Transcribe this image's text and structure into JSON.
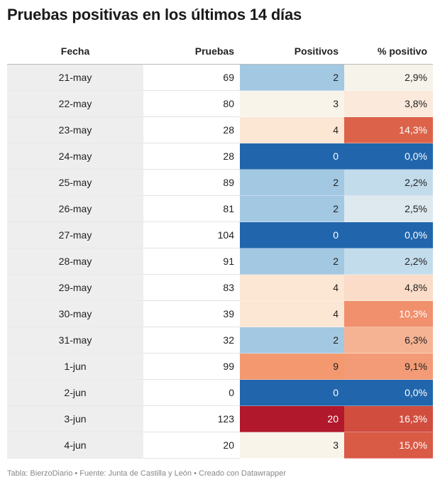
{
  "title": "Pruebas positivas en los últimos 14 días",
  "source": "Tabla: BierzoDiario • Fuente: Junta de Castilla y León • Creado con Datawrapper",
  "chart_data": {
    "type": "table",
    "columns": [
      "Fecha",
      "Pruebas",
      "Positivos",
      "% positivo"
    ],
    "rows": [
      {
        "fecha": "21-may",
        "pruebas": "69",
        "positivos": "2",
        "pct": "2,9%",
        "pos_bg": "#a3c8e2",
        "pos_fg": "#222222",
        "pct_bg": "#f5f3ea",
        "pct_fg": "#222222"
      },
      {
        "fecha": "22-may",
        "pruebas": "80",
        "positivos": "3",
        "pct": "3,8%",
        "pos_bg": "#f8f4ea",
        "pos_fg": "#222222",
        "pct_bg": "#fbe9db",
        "pct_fg": "#222222"
      },
      {
        "fecha": "23-may",
        "pruebas": "28",
        "positivos": "4",
        "pct": "14,3%",
        "pos_bg": "#fce6d4",
        "pos_fg": "#222222",
        "pct_bg": "#dc634a",
        "pct_fg": "#ffffff"
      },
      {
        "fecha": "24-may",
        "pruebas": "28",
        "positivos": "0",
        "pct": "0,0%",
        "pos_bg": "#2166ac",
        "pos_fg": "#ffffff",
        "pct_bg": "#2166ac",
        "pct_fg": "#ffffff"
      },
      {
        "fecha": "25-may",
        "pruebas": "89",
        "positivos": "2",
        "pct": "2,2%",
        "pos_bg": "#a3c8e2",
        "pos_fg": "#222222",
        "pct_bg": "#c3dceb",
        "pct_fg": "#222222"
      },
      {
        "fecha": "26-may",
        "pruebas": "81",
        "positivos": "2",
        "pct": "2,5%",
        "pos_bg": "#a3c8e2",
        "pos_fg": "#222222",
        "pct_bg": "#dde9ef",
        "pct_fg": "#222222"
      },
      {
        "fecha": "27-may",
        "pruebas": "104",
        "positivos": "0",
        "pct": "0,0%",
        "pos_bg": "#2166ac",
        "pos_fg": "#ffffff",
        "pct_bg": "#2166ac",
        "pct_fg": "#ffffff"
      },
      {
        "fecha": "28-may",
        "pruebas": "91",
        "positivos": "2",
        "pct": "2,2%",
        "pos_bg": "#a3c8e2",
        "pos_fg": "#222222",
        "pct_bg": "#c3dceb",
        "pct_fg": "#222222"
      },
      {
        "fecha": "29-may",
        "pruebas": "83",
        "positivos": "4",
        "pct": "4,8%",
        "pos_bg": "#fce6d4",
        "pos_fg": "#222222",
        "pct_bg": "#fbdcc8",
        "pct_fg": "#222222"
      },
      {
        "fecha": "30-may",
        "pruebas": "39",
        "positivos": "4",
        "pct": "10,3%",
        "pos_bg": "#fce6d4",
        "pos_fg": "#222222",
        "pct_bg": "#f0906d",
        "pct_fg": "#ffffff"
      },
      {
        "fecha": "31-may",
        "pruebas": "32",
        "positivos": "2",
        "pct": "6,3%",
        "pos_bg": "#a3c8e2",
        "pos_fg": "#222222",
        "pct_bg": "#f6b394",
        "pct_fg": "#222222"
      },
      {
        "fecha": "1-jun",
        "pruebas": "99",
        "positivos": "9",
        "pct": "9,1%",
        "pos_bg": "#f4996f",
        "pos_fg": "#222222",
        "pct_bg": "#f39b76",
        "pct_fg": "#222222"
      },
      {
        "fecha": "2-jun",
        "pruebas": "0",
        "positivos": "0",
        "pct": "0,0%",
        "pos_bg": "#2166ac",
        "pos_fg": "#ffffff",
        "pct_bg": "#2166ac",
        "pct_fg": "#ffffff"
      },
      {
        "fecha": "3-jun",
        "pruebas": "123",
        "positivos": "20",
        "pct": "16,3%",
        "pos_bg": "#b2182b",
        "pos_fg": "#ffffff",
        "pct_bg": "#d14e3f",
        "pct_fg": "#ffffff"
      },
      {
        "fecha": "4-jun",
        "pruebas": "20",
        "positivos": "3",
        "pct": "15,0%",
        "pos_bg": "#f8f4ea",
        "pos_fg": "#222222",
        "pct_bg": "#d95a45",
        "pct_fg": "#ffffff"
      }
    ]
  }
}
